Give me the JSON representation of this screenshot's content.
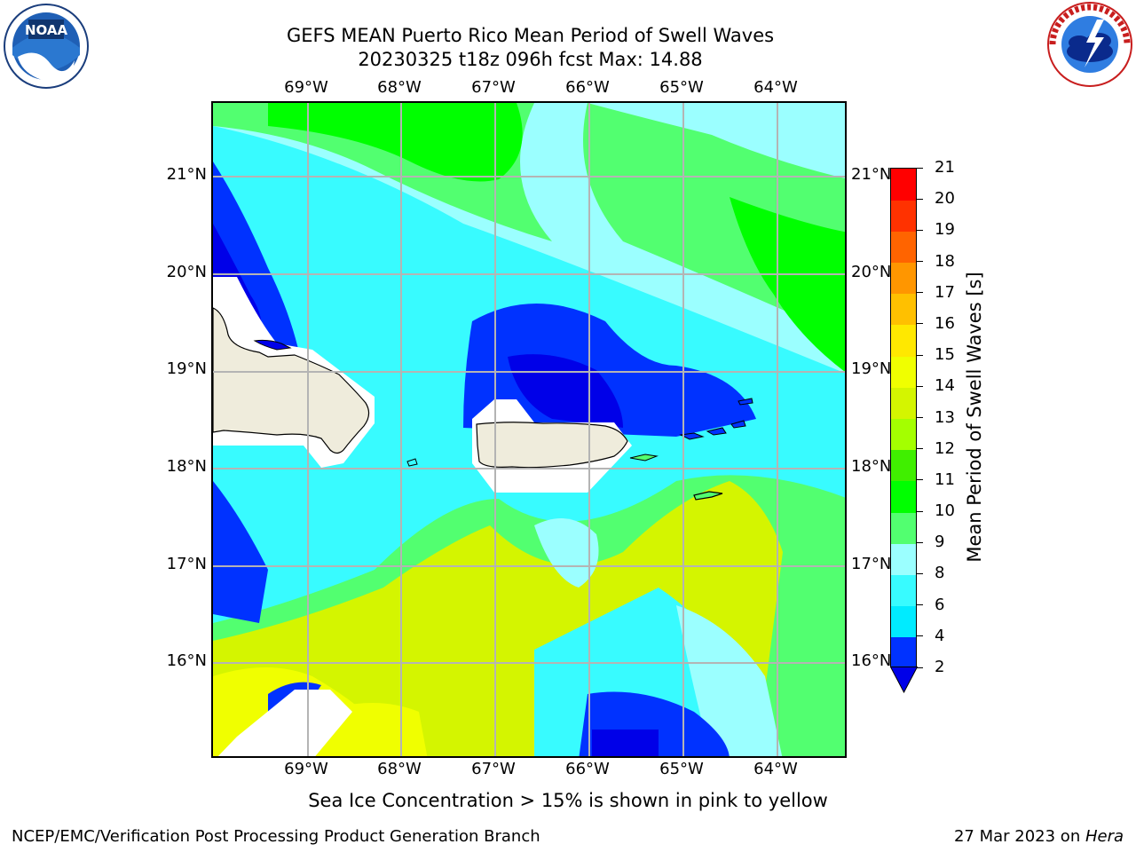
{
  "title": {
    "line1": "GEFS MEAN Puerto Rico Mean Period of Swell Waves",
    "line2": "20230325 t18z 096h fcst   Max: 14.88"
  },
  "logos": {
    "left": {
      "name": "noaa-logo",
      "text": "NOAA"
    },
    "right": {
      "name": "national-weather-service-logo",
      "text": "NATIONAL WEATHER SERVICE"
    }
  },
  "map": {
    "lon_labels": [
      "69°W",
      "68°W",
      "67°W",
      "66°W",
      "65°W",
      "64°W"
    ],
    "lat_labels": [
      "21°N",
      "20°N",
      "19°N",
      "18°N",
      "17°N",
      "16°N"
    ],
    "land_color": "#efecdc",
    "grid_color": "#b4b4b4",
    "field": "Mean Period of Swell Waves",
    "units": "s",
    "max_value": 14.88
  },
  "colorbar": {
    "label": "Mean Period of Swell Waves [s]",
    "ticks": [
      "2",
      "4",
      "6",
      "8",
      "9",
      "10",
      "11",
      "12",
      "13",
      "14",
      "15",
      "16",
      "17",
      "18",
      "19",
      "20",
      "21"
    ],
    "colors": [
      "#0032ff",
      "#00ebff",
      "#38fbff",
      "#9bffff",
      "#52ff70",
      "#00ff00",
      "#40ef00",
      "#a4ff00",
      "#d4f500",
      "#f0ff00",
      "#ffe800",
      "#ffc000",
      "#ff9600",
      "#ff6400",
      "#ff3200",
      "#ff0000"
    ],
    "under_color": "#0000e8"
  },
  "footnote": "Sea Ice Concentration > 15% is shown in pink to yellow",
  "footer": {
    "left": "NCEP/EMC/Verification Post Processing Product Generation Branch",
    "right_prefix": "27 Mar 2023 on ",
    "right_host": "Hera"
  }
}
